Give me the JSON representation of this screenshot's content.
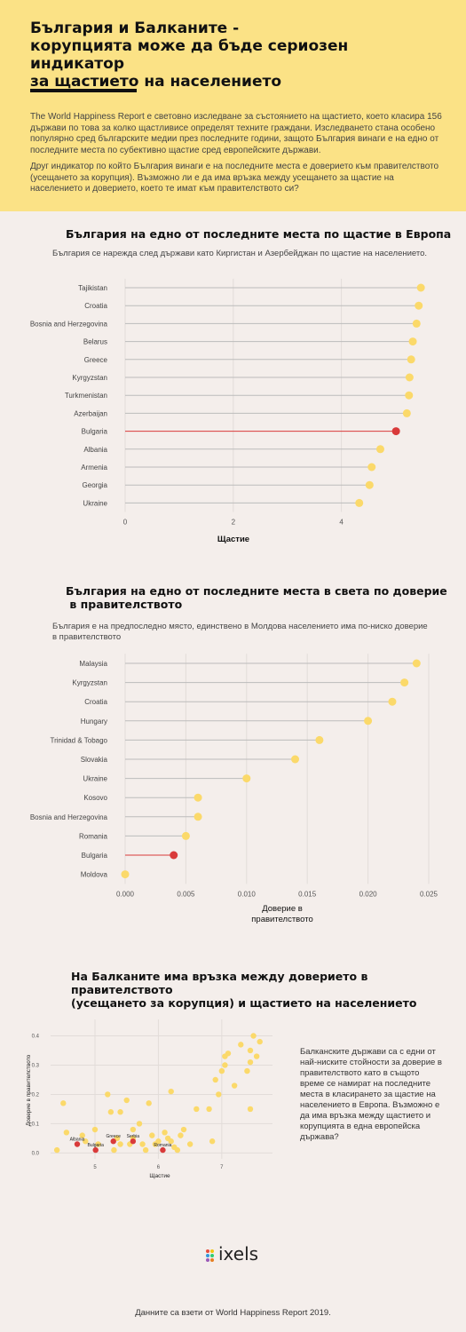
{
  "header": {
    "title_lines": [
      "България и Балканите -",
      "корупцията може да бъде сериозен индикатор",
      "за щастието на населението"
    ],
    "intro_p1": "The World Happiness Report е световно изследване за състоянието на щастието, което класира 156 държави по това за колко щастливисе определят техните граждани. Изследването стана особено популярно сред българските медии през  последните години, защото България винаги е на едно от последните места по субективно щастие сред европейските държави.",
    "intro_p2": "Друг индикатор по който България винаги е на последните места е доверието към правителството (усещането за корупция). Възможно ли е да има връзка между усещането за щастие на населението и доверието, което те имат към правителството си?"
  },
  "section1": {
    "title": "България на едно от последните места по щастие в Европа",
    "subtitle": "България се нарежда след държави като Киргистан и Азербейджан по щастие на населението."
  },
  "section2": {
    "title_lines": [
      "България на едно от последните места в света по доверие",
      " в правителството"
    ],
    "subtitle_lines": [
      "България е на предпоследно място, единствено в Молдова населението има по-ниско доверие",
      "в правителството"
    ]
  },
  "section3": {
    "title_lines": [
      "На Балканите има връзка между доверието в правителството",
      "(усещането за корупция) и щастието на населението"
    ],
    "side_text": "Балканските държави са с едни от най-ниските стойности за доверие в правителството като в същото време се намират на последните места в класирането за щастие на населението в Европа. Възможно е да има връзка между щастието и корупцията в една европейска държава?"
  },
  "logo": {
    "text": "ixels"
  },
  "footer": "Данните са взети от World Happiness Report 2019.",
  "colors": {
    "header_bg": "#fbe286",
    "page_bg": "#f4eeeb",
    "dot": "#fbd96a",
    "highlight": "#d93a3a",
    "stem": "#bbbbbb"
  },
  "chart_data": [
    {
      "type": "scatter",
      "subtype": "lollipop",
      "categories": [
        "Tajikistan",
        "Croatia",
        "Bosnia and Herzegovina",
        "Belarus",
        "Greece",
        "Kyrgyzstan",
        "Turkmenistan",
        "Azerbaijan",
        "Bulgaria",
        "Albania",
        "Armenia",
        "Georgia",
        "Ukraine"
      ],
      "values": [
        5.47,
        5.43,
        5.39,
        5.32,
        5.29,
        5.26,
        5.25,
        5.21,
        5.01,
        4.72,
        4.56,
        4.52,
        4.33
      ],
      "highlight": "Bulgaria",
      "xlabel": "Щастие",
      "xticks": [
        0,
        2,
        4
      ],
      "xlim": [
        0,
        5.5
      ],
      "grid": true
    },
    {
      "type": "scatter",
      "subtype": "lollipop",
      "categories": [
        "Malaysia",
        "Kyrgyzstan",
        "Croatia",
        "Hungary",
        "Trinidad & Tobago",
        "Slovakia",
        "Ukraine",
        "Kosovo",
        "Bosnia and Herzegovina",
        "Romania",
        "Bulgaria",
        "Moldova"
      ],
      "values": [
        0.024,
        0.023,
        0.022,
        0.02,
        0.016,
        0.014,
        0.01,
        0.006,
        0.006,
        0.005,
        0.004,
        0.0
      ],
      "highlight": "Bulgaria",
      "xlabel": "Доверие в правителството",
      "xticks": [
        "0.000",
        "0.005",
        "0.010",
        "0.015",
        "0.020",
        "0.025"
      ],
      "xlim": [
        0,
        0.025
      ],
      "grid": true
    },
    {
      "type": "scatter",
      "xlabel": "Щастие",
      "ylabel": "Доверие в правителството",
      "xticks": [
        5,
        6,
        7
      ],
      "yticks": [
        "0.0",
        "0.1",
        "0.2",
        "0.3",
        "0.4"
      ],
      "xlim": [
        4.3,
        7.8
      ],
      "ylim": [
        -0.02,
        0.45
      ],
      "points": [
        [
          4.4,
          0.01
        ],
        [
          4.55,
          0.07
        ],
        [
          4.5,
          0.17
        ],
        [
          4.8,
          0.06
        ],
        [
          4.85,
          0.04
        ],
        [
          5.0,
          0.08
        ],
        [
          5.05,
          0.03
        ],
        [
          5.2,
          0.2
        ],
        [
          5.25,
          0.14
        ],
        [
          5.3,
          0.01
        ],
        [
          5.35,
          0.05
        ],
        [
          5.4,
          0.03
        ],
        [
          5.4,
          0.14
        ],
        [
          5.5,
          0.18
        ],
        [
          5.55,
          0.03
        ],
        [
          5.6,
          0.05
        ],
        [
          5.6,
          0.08
        ],
        [
          5.7,
          0.1
        ],
        [
          5.75,
          0.03
        ],
        [
          5.8,
          0.01
        ],
        [
          5.85,
          0.17
        ],
        [
          5.9,
          0.06
        ],
        [
          5.95,
          0.03
        ],
        [
          6.0,
          0.04
        ],
        [
          6.1,
          0.07
        ],
        [
          6.15,
          0.05
        ],
        [
          6.2,
          0.04
        ],
        [
          6.2,
          0.21
        ],
        [
          6.25,
          0.02
        ],
        [
          6.3,
          0.01
        ],
        [
          6.35,
          0.06
        ],
        [
          6.4,
          0.08
        ],
        [
          6.5,
          0.03
        ],
        [
          6.6,
          0.15
        ],
        [
          6.8,
          0.15
        ],
        [
          6.85,
          0.04
        ],
        [
          6.9,
          0.25
        ],
        [
          6.95,
          0.2
        ],
        [
          7.0,
          0.28
        ],
        [
          7.05,
          0.3
        ],
        [
          7.05,
          0.33
        ],
        [
          7.1,
          0.34
        ],
        [
          7.2,
          0.23
        ],
        [
          7.3,
          0.37
        ],
        [
          7.4,
          0.28
        ],
        [
          7.45,
          0.31
        ],
        [
          7.45,
          0.35
        ],
        [
          7.45,
          0.15
        ],
        [
          7.5,
          0.4
        ],
        [
          7.55,
          0.33
        ],
        [
          7.6,
          0.38
        ]
      ],
      "highlight_points": [
        {
          "label": "Greece",
          "x": 5.29,
          "y": 0.04
        },
        {
          "label": "Albania",
          "x": 4.72,
          "y": 0.03
        },
        {
          "label": "Bulgaria",
          "x": 5.01,
          "y": 0.01
        },
        {
          "label": "Serbia",
          "x": 5.6,
          "y": 0.04
        },
        {
          "label": "Romania",
          "x": 6.07,
          "y": 0.01
        }
      ],
      "grid": true
    }
  ]
}
